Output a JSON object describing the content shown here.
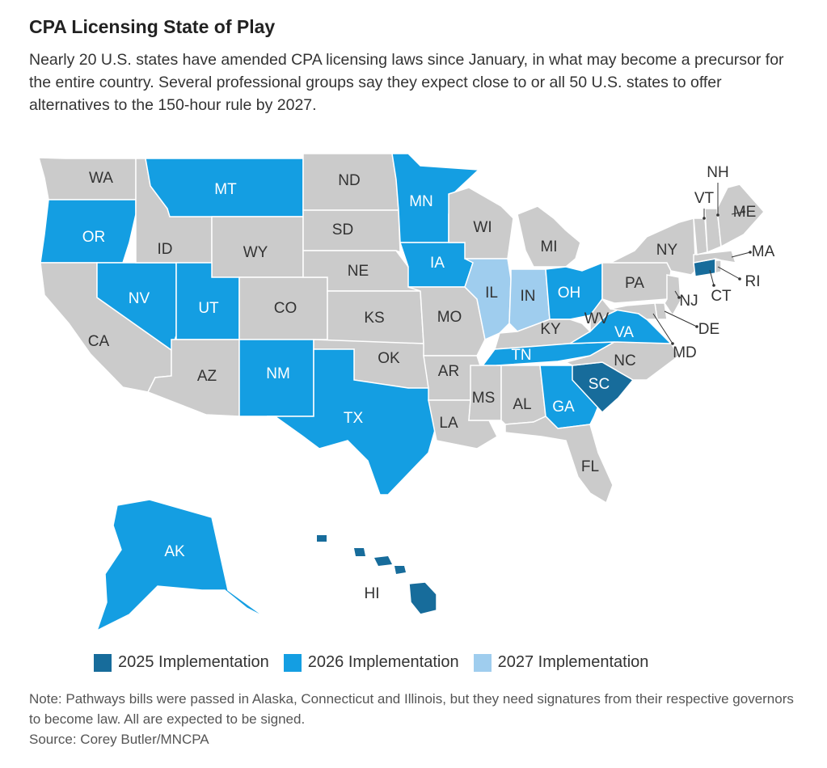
{
  "title": "CPA Licensing State of Play",
  "subtitle": "Nearly 20 U.S. states have amended CPA licensing laws since January, in what may become a precursor for the entire country. Several professional groups say they expect close to or all 50 U.S. states to offer alternatives to the 150-hour rule by 2027.",
  "colors": {
    "y2025": "#176c9b",
    "y2026": "#149ee2",
    "y2027": "#9fcdee",
    "none": "#cbcbcb",
    "border": "#ffffff"
  },
  "legend": [
    {
      "key": "y2025",
      "label": "2025 Implementation"
    },
    {
      "key": "y2026",
      "label": "2026 Implementation"
    },
    {
      "key": "y2027",
      "label": "2027 Implementation"
    }
  ],
  "states": [
    {
      "abbr": "WA",
      "status": "none"
    },
    {
      "abbr": "OR",
      "status": "y2026"
    },
    {
      "abbr": "CA",
      "status": "none"
    },
    {
      "abbr": "NV",
      "status": "y2026"
    },
    {
      "abbr": "ID",
      "status": "none"
    },
    {
      "abbr": "MT",
      "status": "y2026"
    },
    {
      "abbr": "WY",
      "status": "none"
    },
    {
      "abbr": "UT",
      "status": "y2026"
    },
    {
      "abbr": "AZ",
      "status": "none"
    },
    {
      "abbr": "CO",
      "status": "none"
    },
    {
      "abbr": "NM",
      "status": "y2026"
    },
    {
      "abbr": "ND",
      "status": "none"
    },
    {
      "abbr": "SD",
      "status": "none"
    },
    {
      "abbr": "NE",
      "status": "none"
    },
    {
      "abbr": "KS",
      "status": "none"
    },
    {
      "abbr": "OK",
      "status": "none"
    },
    {
      "abbr": "TX",
      "status": "y2026"
    },
    {
      "abbr": "MN",
      "status": "y2026"
    },
    {
      "abbr": "IA",
      "status": "y2026"
    },
    {
      "abbr": "MO",
      "status": "none"
    },
    {
      "abbr": "AR",
      "status": "none"
    },
    {
      "abbr": "LA",
      "status": "none"
    },
    {
      "abbr": "WI",
      "status": "none"
    },
    {
      "abbr": "IL",
      "status": "y2027"
    },
    {
      "abbr": "MI",
      "status": "none"
    },
    {
      "abbr": "IN",
      "status": "y2027"
    },
    {
      "abbr": "OH",
      "status": "y2026"
    },
    {
      "abbr": "KY",
      "status": "none"
    },
    {
      "abbr": "TN",
      "status": "y2026"
    },
    {
      "abbr": "MS",
      "status": "none"
    },
    {
      "abbr": "AL",
      "status": "none"
    },
    {
      "abbr": "GA",
      "status": "y2026"
    },
    {
      "abbr": "FL",
      "status": "none"
    },
    {
      "abbr": "SC",
      "status": "y2025"
    },
    {
      "abbr": "NC",
      "status": "none"
    },
    {
      "abbr": "VA",
      "status": "y2026"
    },
    {
      "abbr": "WV",
      "status": "none"
    },
    {
      "abbr": "PA",
      "status": "none"
    },
    {
      "abbr": "NY",
      "status": "none"
    },
    {
      "abbr": "NJ",
      "status": "none"
    },
    {
      "abbr": "DE",
      "status": "none"
    },
    {
      "abbr": "MD",
      "status": "none"
    },
    {
      "abbr": "CT",
      "status": "y2025"
    },
    {
      "abbr": "RI",
      "status": "none"
    },
    {
      "abbr": "MA",
      "status": "none"
    },
    {
      "abbr": "VT",
      "status": "none"
    },
    {
      "abbr": "NH",
      "status": "none"
    },
    {
      "abbr": "ME",
      "status": "none"
    },
    {
      "abbr": "AK",
      "status": "y2026"
    },
    {
      "abbr": "HI",
      "status": "y2025"
    }
  ],
  "note": "Note: Pathways bills were passed in Alaska, Connecticut and Illinois, but they need signatures from their respective governors to become law. All are expected to be signed.",
  "source": "Source: Corey Butler/MNCPA"
}
